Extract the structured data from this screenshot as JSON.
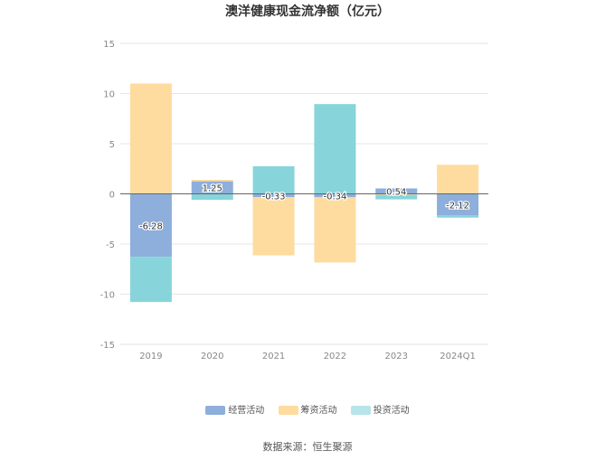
{
  "chart_data": {
    "type": "bar",
    "stacked": true,
    "title": "澳洋健康现金流净额（亿元）",
    "xlabel": "",
    "ylabel": "",
    "ylim": [
      -15,
      15
    ],
    "yticks": [
      15,
      10,
      5,
      0,
      -5,
      -10,
      -15
    ],
    "categories": [
      "2019",
      "2020",
      "2021",
      "2022",
      "2023",
      "2024Q1"
    ],
    "grid": true,
    "legend_position": "bottom",
    "series": [
      {
        "name": "经营活动",
        "color": "#8eaedc",
        "values": [
          -6.28,
          1.25,
          -0.33,
          -0.34,
          0.54,
          -2.12
        ],
        "labels": [
          "-6.28",
          "1.25",
          "-0.33",
          "-0.34",
          "0.54",
          "-2.12"
        ]
      },
      {
        "name": "筹资活动",
        "color": "#fedb9f",
        "values": [
          11.0,
          0.15,
          -5.8,
          -6.5,
          -0.1,
          2.9
        ]
      },
      {
        "name": "投资活动",
        "color": "#87d5da",
        "values": [
          -4.5,
          -0.6,
          2.75,
          8.95,
          -0.45,
          -0.25
        ]
      }
    ]
  },
  "legend": {
    "items": [
      {
        "label": "经营活动",
        "color": "#8eaedc"
      },
      {
        "label": "筹资活动",
        "color": "#fedb9f"
      },
      {
        "label": "投资活动",
        "color": "#b6e4e8"
      }
    ]
  },
  "footer": {
    "source": "数据来源：恒生聚源"
  }
}
